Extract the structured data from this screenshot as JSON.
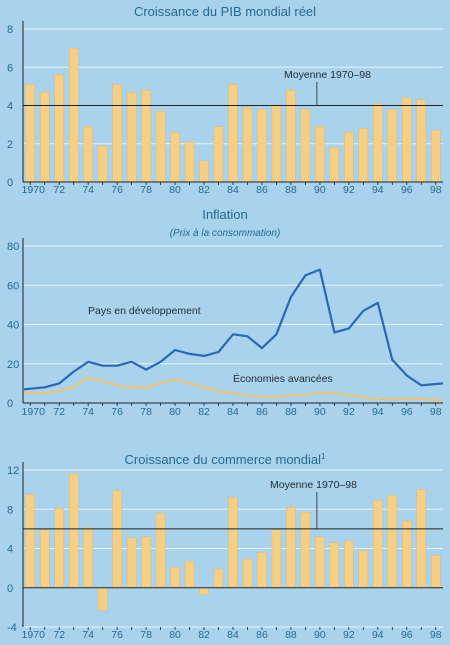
{
  "colors": {
    "background": "#a9d3ec",
    "text": "#24698f",
    "axis": "#1f1f1f",
    "grid": "#e6f3fb",
    "bar": "#f6cf85",
    "bar_edge": "#e3b560",
    "developing_line": "#2d67b3",
    "advanced_line": "#f6c25f"
  },
  "chart_data": [
    {
      "type": "bar",
      "title": "Croissance du PIB mondial réel",
      "x": [
        1970,
        1971,
        1972,
        1973,
        1974,
        1975,
        1976,
        1977,
        1978,
        1979,
        1980,
        1981,
        1982,
        1983,
        1984,
        1985,
        1986,
        1987,
        1988,
        1989,
        1990,
        1991,
        1992,
        1993,
        1994,
        1995,
        1996,
        1997,
        1998
      ],
      "values": [
        5.1,
        4.7,
        5.6,
        7.0,
        2.9,
        1.9,
        5.1,
        4.7,
        4.8,
        3.7,
        2.6,
        2.1,
        1.1,
        2.9,
        5.1,
        3.9,
        3.8,
        4.0,
        4.8,
        3.8,
        2.9,
        1.8,
        2.6,
        2.8,
        4.1,
        3.8,
        4.4,
        4.3,
        2.7
      ],
      "ylim": [
        0,
        8
      ],
      "yticks": [
        0,
        2,
        4,
        6,
        8
      ],
      "xtick_labels": [
        "1970",
        "72",
        "74",
        "76",
        "78",
        "80",
        "82",
        "84",
        "86",
        "88",
        "90",
        "92",
        "94",
        "96",
        "98"
      ],
      "reference_line": {
        "value": 4.0,
        "label": "Moyenne 1970–98"
      }
    },
    {
      "type": "line",
      "title": "Inflation",
      "subtitle": "(Prix à la consommation)",
      "x": [
        1970,
        1971,
        1972,
        1973,
        1974,
        1975,
        1976,
        1977,
        1978,
        1979,
        1980,
        1981,
        1982,
        1983,
        1984,
        1985,
        1986,
        1987,
        1988,
        1989,
        1990,
        1991,
        1992,
        1993,
        1994,
        1995,
        1996,
        1997,
        1998
      ],
      "series": [
        {
          "name": "Pays en développement",
          "values": [
            7,
            8,
            10,
            16,
            21,
            19,
            19,
            21,
            17,
            21,
            27,
            25,
            24,
            26,
            35,
            34,
            28,
            35,
            54,
            65,
            68,
            36,
            38,
            47,
            51,
            22,
            14,
            9,
            10
          ]
        },
        {
          "name": "Économies avancées",
          "values": [
            5,
            5,
            6,
            8,
            13,
            11,
            9,
            8,
            8,
            10,
            12,
            10,
            8,
            6,
            5,
            4,
            3,
            3,
            4,
            4,
            5,
            5,
            4,
            3,
            2,
            2,
            2,
            2,
            1.5
          ]
        }
      ],
      "ylim": [
        0,
        80
      ],
      "yticks": [
        0,
        20,
        40,
        60,
        80
      ],
      "xtick_labels": [
        "1970",
        "72",
        "74",
        "76",
        "78",
        "80",
        "82",
        "84",
        "86",
        "88",
        "90",
        "92",
        "94",
        "96",
        "98"
      ]
    },
    {
      "type": "bar",
      "title": "Croissance du commerce mondial",
      "title_note": "1",
      "x": [
        1970,
        1971,
        1972,
        1973,
        1974,
        1975,
        1976,
        1977,
        1978,
        1979,
        1980,
        1981,
        1982,
        1983,
        1984,
        1985,
        1986,
        1987,
        1988,
        1989,
        1990,
        1991,
        1992,
        1993,
        1994,
        1995,
        1996,
        1997,
        1998
      ],
      "values": [
        9.5,
        5.9,
        8.1,
        11.6,
        6.1,
        -2.3,
        9.9,
        5.1,
        5.2,
        7.6,
        2.1,
        2.7,
        -0.7,
        1.9,
        9.2,
        2.9,
        3.6,
        5.9,
        8.2,
        7.7,
        5.2,
        4.6,
        4.8,
        3.8,
        8.9,
        9.4,
        6.8,
        10.0,
        3.3
      ],
      "ylim": [
        -4,
        12
      ],
      "yticks": [
        -4,
        0,
        4,
        8,
        12
      ],
      "xtick_labels": [
        "1970",
        "72",
        "74",
        "76",
        "78",
        "80",
        "82",
        "84",
        "86",
        "88",
        "90",
        "92",
        "94",
        "96",
        "98"
      ],
      "reference_line": {
        "value": 6.0,
        "label": "Moyenne 1970–98"
      }
    }
  ]
}
